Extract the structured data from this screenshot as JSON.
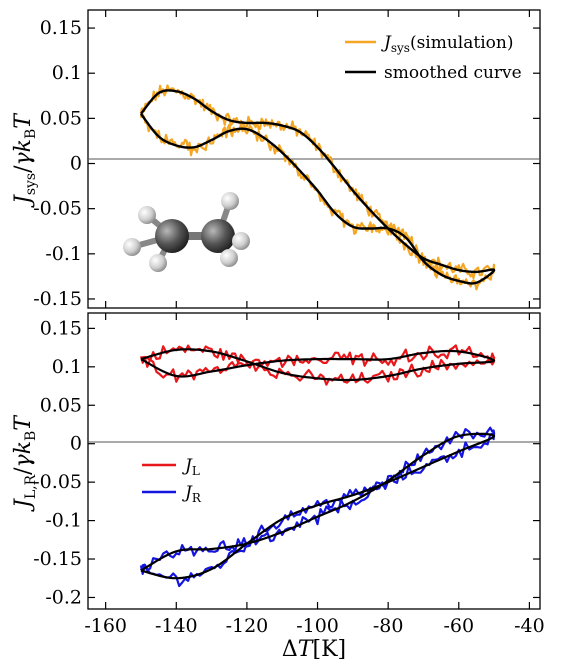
{
  "chart_data": [
    {
      "type": "line",
      "panel": "top",
      "ylabel": "J_sys/γk_BT",
      "xlim": [
        -165,
        -37
      ],
      "ylim": [
        -0.16,
        0.17
      ],
      "yticks": [
        -0.15,
        -0.1,
        -0.05,
        0,
        0.05,
        0.1,
        0.15
      ],
      "ytick_labels": [
        "-0.15",
        "-0.1",
        "-0.05",
        "0",
        "0.05",
        "0.1",
        "0.15"
      ],
      "zero_line": true,
      "legend_position": "top-right",
      "inset": "ethane molecule (ball-and-stick)",
      "series": [
        {
          "name": "J_sys(simulation)",
          "color": "#F5A623",
          "noisy": true,
          "x": [
            -150,
            -145,
            -140,
            -135,
            -130,
            -125,
            -120,
            -115,
            -110,
            -105,
            -100,
            -95,
            -90,
            -85,
            -80,
            -75,
            -70,
            -65,
            -60,
            -55,
            -50,
            -55,
            -60,
            -65,
            -70,
            -75,
            -80,
            -85,
            -90,
            -95,
            -100,
            -105,
            -110,
            -115,
            -120,
            -125,
            -130,
            -135,
            -140,
            -145,
            -150
          ],
          "y": [
            0.055,
            0.078,
            0.08,
            0.072,
            0.058,
            0.048,
            0.045,
            0.045,
            0.042,
            0.035,
            0.018,
            -0.005,
            -0.03,
            -0.052,
            -0.072,
            -0.09,
            -0.105,
            -0.112,
            -0.118,
            -0.12,
            -0.118,
            -0.132,
            -0.13,
            -0.123,
            -0.108,
            -0.082,
            -0.072,
            -0.072,
            -0.07,
            -0.055,
            -0.03,
            -0.008,
            0.012,
            0.028,
            0.038,
            0.036,
            0.026,
            0.018,
            0.02,
            0.03,
            0.055
          ]
        },
        {
          "name": "smoothed curve",
          "color": "#000000",
          "noisy": false,
          "x": [
            -150,
            -145,
            -140,
            -135,
            -130,
            -125,
            -120,
            -115,
            -110,
            -105,
            -100,
            -95,
            -90,
            -85,
            -80,
            -75,
            -70,
            -65,
            -60,
            -55,
            -50,
            -55,
            -60,
            -65,
            -70,
            -75,
            -80,
            -85,
            -90,
            -95,
            -100,
            -105,
            -110,
            -115,
            -120,
            -125,
            -130,
            -135,
            -140,
            -145,
            -150
          ],
          "y": [
            0.055,
            0.078,
            0.08,
            0.072,
            0.058,
            0.048,
            0.045,
            0.045,
            0.042,
            0.035,
            0.018,
            -0.005,
            -0.03,
            -0.052,
            -0.072,
            -0.09,
            -0.105,
            -0.112,
            -0.118,
            -0.12,
            -0.118,
            -0.132,
            -0.13,
            -0.123,
            -0.108,
            -0.082,
            -0.072,
            -0.072,
            -0.07,
            -0.055,
            -0.03,
            -0.008,
            0.012,
            0.028,
            0.038,
            0.036,
            0.026,
            0.018,
            0.02,
            0.03,
            0.055
          ]
        }
      ]
    },
    {
      "type": "line",
      "panel": "bottom",
      "xlabel": "ΔT[K]",
      "ylabel": "J_L,R/γk_BT",
      "xlim": [
        -165,
        -37
      ],
      "ylim": [
        -0.215,
        0.17
      ],
      "xticks": [
        -160,
        -140,
        -120,
        -100,
        -80,
        -60,
        -40
      ],
      "xtick_labels": [
        "-160",
        "-140",
        "-120",
        "-100",
        "-80",
        "-60",
        "-40"
      ],
      "yticks": [
        -0.2,
        -0.15,
        -0.1,
        -0.05,
        0,
        0.05,
        0.1,
        0.15
      ],
      "ytick_labels": [
        "-0.2",
        "-0.15",
        "-0.1",
        "-0.05",
        "0",
        "0.05",
        "0.1",
        "0.15"
      ],
      "zero_line": true,
      "legend_position": "center-left",
      "series": [
        {
          "name": "J_L",
          "color": "#E8171B",
          "noisy": true,
          "x": [
            -150,
            -140,
            -130,
            -120,
            -110,
            -100,
            -90,
            -80,
            -70,
            -60,
            -50,
            -60,
            -70,
            -80,
            -90,
            -100,
            -110,
            -120,
            -130,
            -140,
            -150
          ],
          "y": [
            0.11,
            0.122,
            0.12,
            0.107,
            0.092,
            0.085,
            0.083,
            0.088,
            0.098,
            0.104,
            0.108,
            0.12,
            0.118,
            0.11,
            0.11,
            0.11,
            0.108,
            0.102,
            0.094,
            0.088,
            0.11
          ]
        },
        {
          "name": "J_R",
          "color": "#1515E0",
          "noisy": true,
          "x": [
            -150,
            -140,
            -130,
            -120,
            -110,
            -100,
            -90,
            -80,
            -70,
            -60,
            -50,
            -60,
            -70,
            -80,
            -90,
            -100,
            -110,
            -120,
            -130,
            -140,
            -150
          ],
          "y": [
            -0.165,
            -0.175,
            -0.163,
            -0.13,
            -0.098,
            -0.08,
            -0.067,
            -0.05,
            -0.03,
            -0.01,
            0.01,
            0.01,
            -0.015,
            -0.048,
            -0.075,
            -0.095,
            -0.115,
            -0.13,
            -0.137,
            -0.14,
            -0.165
          ]
        }
      ],
      "smoothed_color": "#000000"
    }
  ]
}
